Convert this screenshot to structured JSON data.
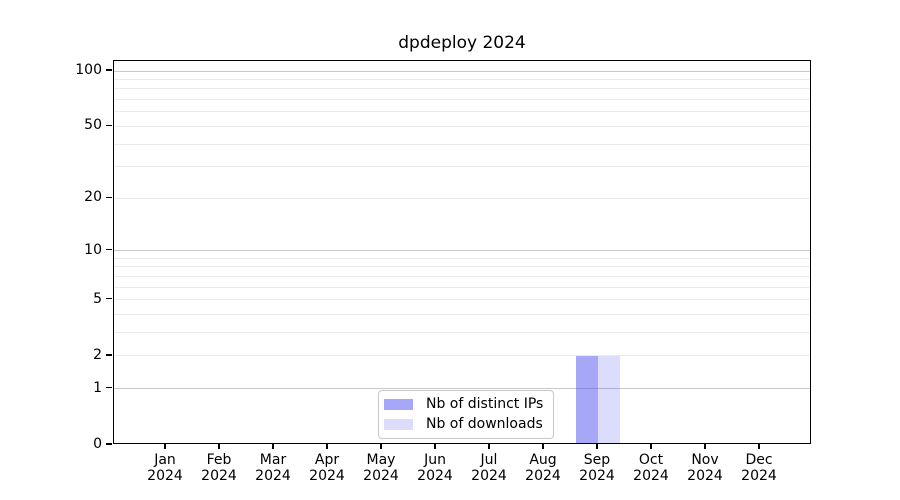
{
  "figure": {
    "title": "dpdeploy 2024"
  },
  "chart_data": {
    "type": "bar",
    "title": "dpdeploy 2024",
    "xlabel": "",
    "ylabel": "",
    "categories": [
      "Jan",
      "Feb",
      "Mar",
      "Apr",
      "May",
      "Jun",
      "Jul",
      "Aug",
      "Sep",
      "Oct",
      "Nov",
      "Dec"
    ],
    "category_year": "2024",
    "series": [
      {
        "name": "Nb of distinct IPs",
        "values": [
          0,
          0,
          0,
          0,
          0,
          0,
          0,
          0,
          2,
          0,
          0,
          0
        ],
        "color_hex": "#a9a9f7",
        "fill": "rgba(80,80,240,0.50)"
      },
      {
        "name": "Nb of downloads",
        "values": [
          0,
          0,
          0,
          0,
          0,
          0,
          0,
          0,
          2,
          0,
          0,
          0
        ],
        "color_hex": "#dcdcf8",
        "fill": "rgba(80,80,240,0.20)"
      }
    ],
    "scale": "log1p",
    "ylim": [
      0,
      113
    ],
    "yticks": [
      0,
      1,
      2,
      5,
      10,
      20,
      50,
      100
    ],
    "grid": {
      "enabled": true,
      "major": [
        1,
        10,
        100
      ],
      "minor": [
        2,
        3,
        4,
        5,
        6,
        7,
        8,
        9,
        20,
        30,
        40,
        50,
        60,
        70,
        80,
        90
      ],
      "major_color": "#c9c9c9",
      "minor_color": "#ebebeb"
    },
    "legend": {
      "position": "inside-bottom-center",
      "border_color": "#c8c8c8"
    },
    "axis_color": "#000000",
    "background_color": "#ffffff"
  }
}
